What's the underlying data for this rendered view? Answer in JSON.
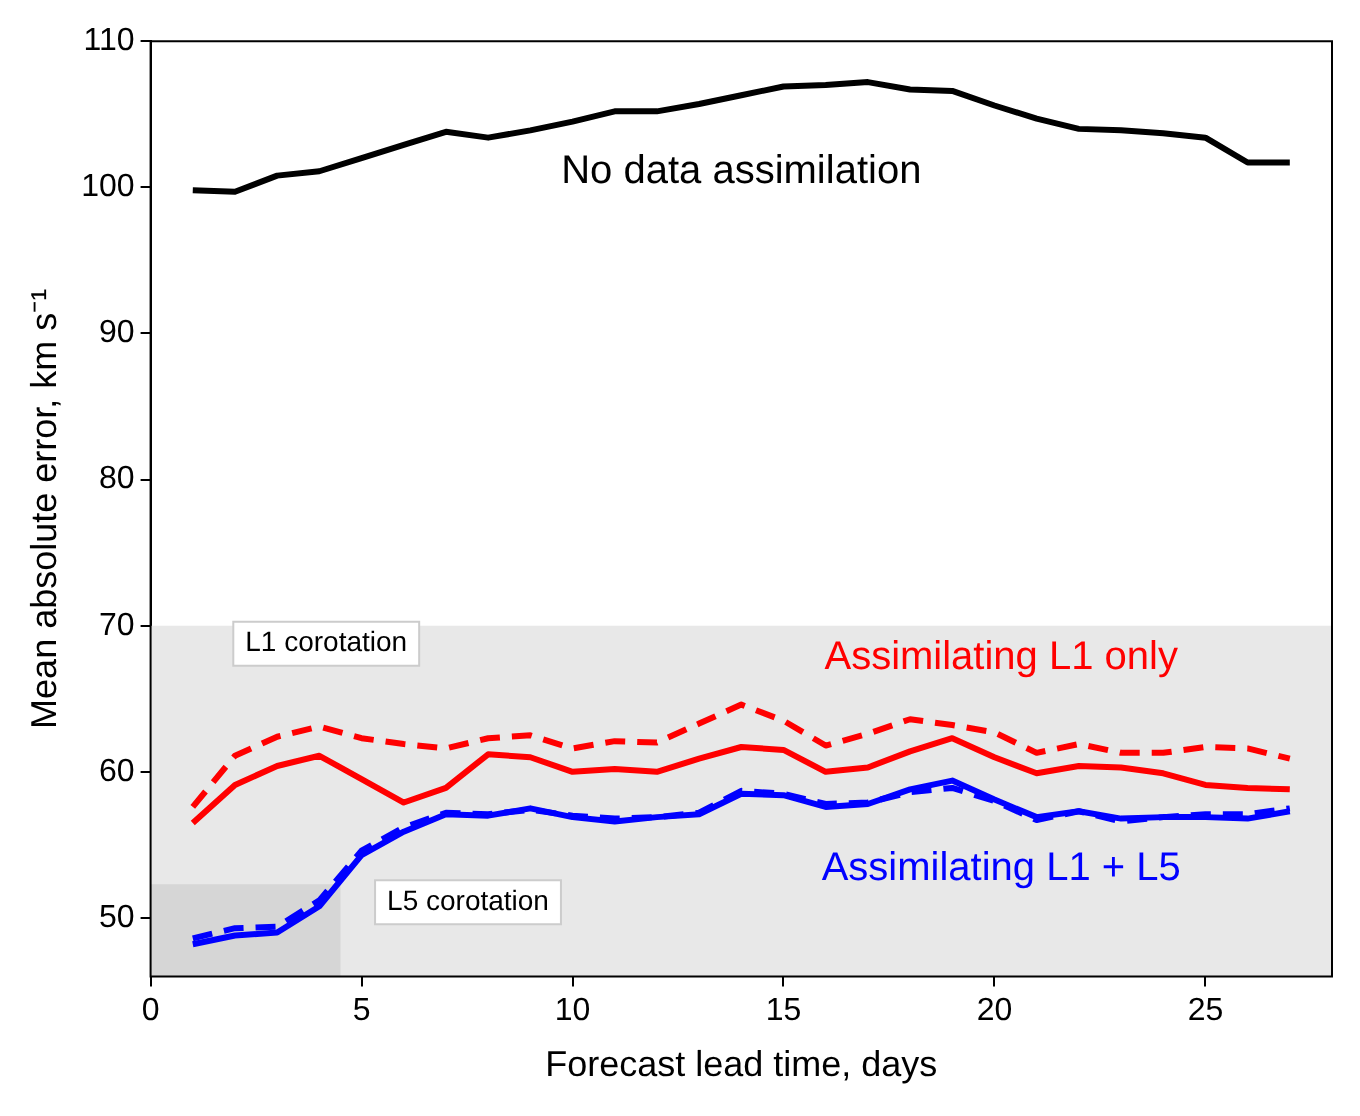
{
  "chart_data": {
    "type": "line",
    "xlabel": "Forecast lead time, days",
    "ylabel": "Mean absolute error, km s⁻¹",
    "x": [
      1,
      2,
      3,
      4,
      5,
      6,
      7,
      8,
      9,
      10,
      11,
      12,
      13,
      14,
      15,
      16,
      17,
      18,
      19,
      20,
      21,
      22,
      23,
      24,
      25,
      26,
      27
    ],
    "series": [
      {
        "name": "No data assimilation",
        "color": "#000000",
        "line_style": "solid",
        "values": [
          99.8,
          99.7,
          100.8,
          101.1,
          102,
          102.9,
          103.8,
          103.4,
          103.9,
          104.5,
          105.2,
          105.2,
          105.7,
          106.3,
          106.9,
          107,
          107.2,
          106.7,
          106.6,
          105.6,
          104.7,
          104,
          103.9,
          103.7,
          103.4,
          101.7,
          101.7
        ]
      },
      {
        "color": "#ff0000",
        "line_style": "dashed",
        "values": [
          57.6,
          61.1,
          62.4,
          63.1,
          62.3,
          61.9,
          61.6,
          62.3,
          62.5,
          61.6,
          62.1,
          62,
          63.3,
          64.6,
          63.5,
          61.8,
          62.6,
          63.6,
          63.2,
          62.7,
          61.3,
          61.9,
          61.3,
          61.3,
          61.7,
          61.6,
          60.9
        ]
      },
      {
        "name": "Assimilating L1 only",
        "color": "#ff0000",
        "line_style": "solid",
        "values": [
          56.5,
          59.1,
          60.4,
          61.1,
          59.5,
          57.9,
          58.9,
          61.2,
          61,
          60,
          60.2,
          60,
          60.9,
          61.7,
          61.5,
          60,
          60.3,
          61.4,
          62.3,
          61,
          59.9,
          60.4,
          60.3,
          59.9,
          59.1,
          58.9,
          58.8
        ]
      },
      {
        "color": "#0000ff",
        "line_style": "dashed",
        "values": [
          48.6,
          49.3,
          49.4,
          51.2,
          54.6,
          56.2,
          57.2,
          57.1,
          57.4,
          57,
          56.8,
          56.9,
          57.2,
          58.7,
          58.5,
          57.8,
          57.9,
          58.6,
          58.9,
          58,
          56.7,
          57.3,
          56.6,
          56.9,
          57.1,
          57.1,
          57.5
        ]
      },
      {
        "name": "Assimilating L1 + L5",
        "color": "#0000ff",
        "line_style": "solid",
        "values": [
          48.2,
          48.8,
          49,
          50.8,
          54.3,
          55.9,
          57.1,
          57,
          57.5,
          56.9,
          56.6,
          56.9,
          57.1,
          58.5,
          58.4,
          57.6,
          57.8,
          58.8,
          59.4,
          58.1,
          56.9,
          57.3,
          56.8,
          56.9,
          56.9,
          56.8,
          57.3
        ]
      }
    ],
    "xlim": [
      0,
      28
    ],
    "xticks": [
      0,
      5,
      10,
      15,
      20,
      25
    ],
    "ylim": [
      46,
      110
    ],
    "yticks": [
      50,
      60,
      70,
      80,
      90,
      100,
      110
    ],
    "bands": [
      {
        "axis": "y",
        "from": 46,
        "to": 70,
        "label": "L1 corotation",
        "color": "#e8e8e8"
      },
      {
        "axis": "y",
        "from": 46,
        "to": 52.3,
        "label": "L5 corotation",
        "color": "#d6d6d6"
      }
    ],
    "grid": false,
    "legend": false,
    "marker": "none"
  }
}
